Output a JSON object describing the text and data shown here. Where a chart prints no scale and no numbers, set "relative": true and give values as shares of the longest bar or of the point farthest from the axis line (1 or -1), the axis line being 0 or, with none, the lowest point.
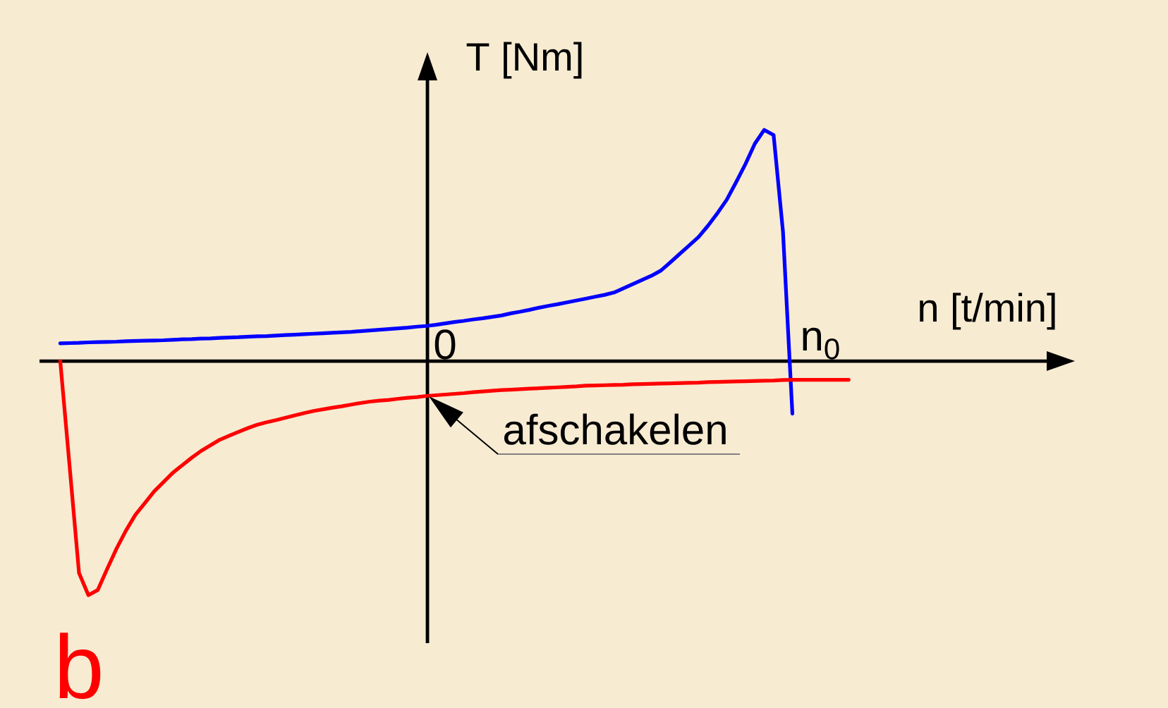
{
  "chart_data": {
    "type": "line",
    "relative": true,
    "xlabel": "n [t/min]",
    "tick_labels": "x",
    "categories": [
      null,
      null,
      null,
      null,
      null,
      null,
      null,
      null,
      null,
      null,
      null,
      null,
      null,
      null,
      null,
      null,
      null,
      null,
      null,
      null,
      null,
      null,
      null,
      null,
      null,
      null,
      null,
      null,
      null,
      null,
      null,
      null,
      null,
      null,
      null,
      null,
      null,
      null,
      null,
      null,
      null,
      "0",
      null,
      null,
      null,
      null,
      null,
      null,
      null,
      null,
      null,
      null,
      null,
      null,
      null,
      null,
      null,
      null,
      null,
      null,
      null,
      null,
      null,
      null,
      null,
      null,
      null,
      null,
      null,
      null,
      null,
      null,
      null,
      null,
      null,
      null,
      null,
      null,
      null,
      null,
      null,
      "n$_{0}$",
      null,
      null,
      null
    ],
    "annotations": [
      "T [Nm]",
      "afschakelen",
      "b"
    ],
    "series": [
      {
        "color": "#0000ff",
        "values": [
          0.076,
          0.077,
          0.078,
          0.08,
          0.081,
          0.082,
          0.083,
          0.085,
          0.086,
          0.087,
          0.088,
          0.089,
          0.091,
          0.093,
          0.094,
          0.096,
          0.097,
          0.099,
          0.101,
          0.102,
          0.104,
          0.106,
          0.107,
          0.109,
          0.111,
          0.113,
          0.115,
          0.117,
          0.119,
          0.121,
          0.123,
          0.125,
          0.128,
          0.131,
          0.134,
          0.137,
          0.14,
          0.143,
          0.147,
          0.15,
          0.155,
          0.161,
          0.167,
          0.172,
          0.178,
          0.183,
          0.189,
          0.195,
          0.204,
          0.211,
          0.219,
          0.228,
          0.236,
          0.243,
          0.251,
          0.259,
          0.267,
          0.275,
          0.283,
          0.293,
          0.311,
          0.329,
          0.347,
          0.365,
          0.387,
          0.422,
          0.458,
          0.494,
          0.53,
          0.578,
          0.631,
          0.689,
          0.764,
          0.842,
          0.929,
          0.988,
          0.966,
          0.552,
          -0.225,
          null,
          null,
          null,
          null,
          null,
          null
        ]
      },
      {
        "color": "#ff0000",
        "values": [
          0,
          -0.451,
          -0.905,
          -1.0,
          -0.978,
          -0.888,
          -0.801,
          -0.724,
          -0.657,
          -0.607,
          -0.557,
          -0.517,
          -0.477,
          -0.445,
          -0.413,
          -0.384,
          -0.36,
          -0.336,
          -0.319,
          -0.302,
          -0.286,
          -0.272,
          -0.261,
          -0.252,
          -0.242,
          -0.232,
          -0.222,
          -0.213,
          -0.206,
          -0.199,
          -0.193,
          -0.186,
          -0.179,
          -0.173,
          -0.169,
          -0.166,
          -0.161,
          -0.157,
          -0.154,
          -0.149,
          -0.146,
          -0.143,
          -0.14,
          -0.137,
          -0.133,
          -0.13,
          -0.127,
          -0.124,
          -0.122,
          -0.12,
          -0.118,
          -0.116,
          -0.114,
          -0.112,
          -0.11,
          -0.108,
          -0.105,
          -0.104,
          -0.103,
          -0.102,
          -0.101,
          -0.099,
          -0.098,
          -0.097,
          -0.096,
          -0.095,
          -0.094,
          -0.093,
          -0.092,
          -0.09,
          -0.089,
          -0.088,
          -0.087,
          -0.086,
          -0.085,
          -0.084,
          -0.083,
          -0.081,
          -0.08,
          -0.08,
          -0.08,
          -0.08,
          -0.08,
          -0.08,
          -0.08
        ]
      }
    ]
  }
}
